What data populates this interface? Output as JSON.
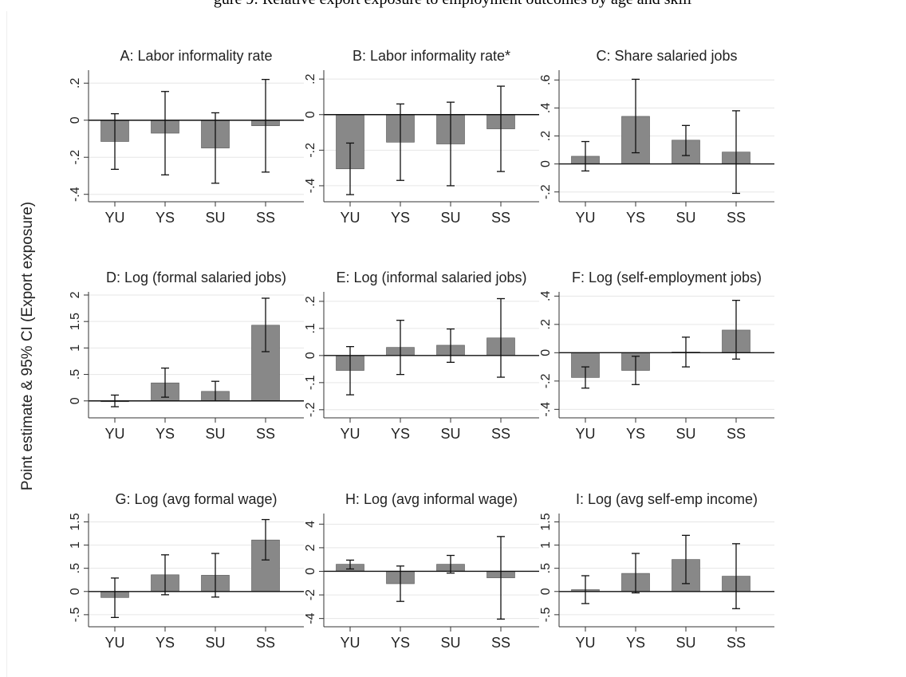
{
  "header": {
    "caption": "gure 9: Relative export exposure to employment outcomes by age and skill"
  },
  "figure": {
    "ylabel": "Point estimate & 95% CI (Export exposure)",
    "bar_color": "#888888",
    "grid_color": "#e6e6e6"
  },
  "chart_data": [
    {
      "type": "bar",
      "title": "A: Labor informality rate",
      "categories": [
        "YU",
        "YS",
        "SU",
        "SS"
      ],
      "values": [
        -0.115,
        -0.07,
        -0.15,
        -0.03
      ],
      "ci_low": [
        -0.265,
        -0.295,
        -0.34,
        -0.28
      ],
      "ci_high": [
        0.035,
        0.155,
        0.04,
        0.22
      ],
      "ylim": [
        -0.44,
        0.27
      ],
      "yticks": [
        -0.4,
        -0.2,
        0,
        0.2
      ],
      "yticklabels": [
        "-.4",
        "-.2",
        "0",
        ".2"
      ]
    },
    {
      "type": "bar",
      "title": "B: Labor informality rate*",
      "categories": [
        "YU",
        "YS",
        "SU",
        "SS"
      ],
      "values": [
        -0.305,
        -0.155,
        -0.165,
        -0.08
      ],
      "ci_low": [
        -0.45,
        -0.37,
        -0.4,
        -0.32
      ],
      "ci_high": [
        -0.16,
        0.06,
        0.07,
        0.16
      ],
      "ylim": [
        -0.49,
        0.25
      ],
      "yticks": [
        -0.4,
        -0.2,
        0,
        0.2
      ],
      "yticklabels": [
        "-.4",
        "-.2",
        "0",
        ".2"
      ]
    },
    {
      "type": "bar",
      "title": "C: Share salaried jobs",
      "categories": [
        "YU",
        "YS",
        "SU",
        "SS"
      ],
      "values": [
        0.055,
        0.34,
        0.17,
        0.085
      ],
      "ci_low": [
        -0.05,
        0.08,
        0.06,
        -0.21
      ],
      "ci_high": [
        0.16,
        0.605,
        0.275,
        0.38
      ],
      "ylim": [
        -0.27,
        0.67
      ],
      "yticks": [
        -0.2,
        0,
        0.2,
        0.4,
        0.6
      ],
      "yticklabels": [
        "-.2",
        "0",
        ".2",
        ".4",
        ".6"
      ]
    },
    {
      "type": "bar",
      "title": "D: Log (formal salaried jobs)",
      "categories": [
        "YU",
        "YS",
        "SU",
        "SS"
      ],
      "values": [
        -0.01,
        0.34,
        0.18,
        1.43
      ],
      "ci_low": [
        -0.11,
        0.07,
        0.0,
        0.93
      ],
      "ci_high": [
        0.11,
        0.62,
        0.37,
        1.94
      ],
      "ylim": [
        -0.32,
        2.06
      ],
      "yticks": [
        0,
        0.5,
        1,
        1.5,
        2
      ],
      "yticklabels": [
        "0",
        ".5",
        "1",
        "1.5",
        "2"
      ]
    },
    {
      "type": "bar",
      "title": "E: Log (informal salaried jobs)",
      "categories": [
        "YU",
        "YS",
        "SU",
        "SS"
      ],
      "values": [
        -0.055,
        0.03,
        0.038,
        0.065
      ],
      "ci_low": [
        -0.145,
        -0.07,
        -0.025,
        -0.08
      ],
      "ci_high": [
        0.033,
        0.13,
        0.098,
        0.21
      ],
      "ylim": [
        -0.23,
        0.235
      ],
      "yticks": [
        -0.2,
        -0.1,
        0,
        0.1,
        0.2
      ],
      "yticklabels": [
        "-.2",
        "-.1",
        "0",
        ".1",
        ".2"
      ]
    },
    {
      "type": "bar",
      "title": "F: Log (self-employment jobs)",
      "categories": [
        "YU",
        "YS",
        "SU",
        "SS"
      ],
      "values": [
        -0.175,
        -0.125,
        0.005,
        0.16
      ],
      "ci_low": [
        -0.25,
        -0.225,
        -0.1,
        -0.045
      ],
      "ci_high": [
        -0.1,
        -0.025,
        0.11,
        0.37
      ],
      "ylim": [
        -0.46,
        0.43
      ],
      "yticks": [
        -0.4,
        -0.2,
        0,
        0.2,
        0.4
      ],
      "yticklabels": [
        "-.4",
        "-.2",
        "0",
        ".2",
        ".4"
      ]
    },
    {
      "type": "bar",
      "title": "G: Log (avg formal wage)",
      "categories": [
        "YU",
        "YS",
        "SU",
        "SS"
      ],
      "values": [
        -0.13,
        0.36,
        0.35,
        1.11
      ],
      "ci_low": [
        -0.56,
        -0.07,
        -0.12,
        0.68
      ],
      "ci_high": [
        0.29,
        0.79,
        0.82,
        1.55
      ],
      "ylim": [
        -0.76,
        1.68
      ],
      "yticks": [
        -0.5,
        0,
        0.5,
        1,
        1.5
      ],
      "yticklabels": [
        "-.5",
        "0",
        ".5",
        "1",
        "1.5"
      ]
    },
    {
      "type": "bar",
      "title": "H: Log (avg informal wage)",
      "categories": [
        "YU",
        "YS",
        "SU",
        "SS"
      ],
      "values": [
        0.6,
        -1.05,
        0.6,
        -0.55
      ],
      "ci_low": [
        0.2,
        -2.55,
        -0.15,
        -4.05
      ],
      "ci_high": [
        0.95,
        0.45,
        1.35,
        2.95
      ],
      "ylim": [
        -4.7,
        4.9
      ],
      "yticks": [
        -4,
        -2,
        0,
        2,
        4
      ],
      "yticklabels": [
        "-4",
        "-2",
        "0",
        "2",
        "4"
      ]
    },
    {
      "type": "bar",
      "title": "I: Log (avg self-emp income)",
      "categories": [
        "YU",
        "YS",
        "SU",
        "SS"
      ],
      "values": [
        0.04,
        0.39,
        0.69,
        0.33
      ],
      "ci_low": [
        -0.26,
        -0.03,
        0.17,
        -0.37
      ],
      "ci_high": [
        0.34,
        0.82,
        1.21,
        1.03
      ],
      "ylim": [
        -0.76,
        1.68
      ],
      "yticks": [
        -0.5,
        0,
        0.5,
        1,
        1.5
      ],
      "yticklabels": [
        "-.5",
        "0",
        ".5",
        "1",
        "1.5"
      ]
    }
  ]
}
